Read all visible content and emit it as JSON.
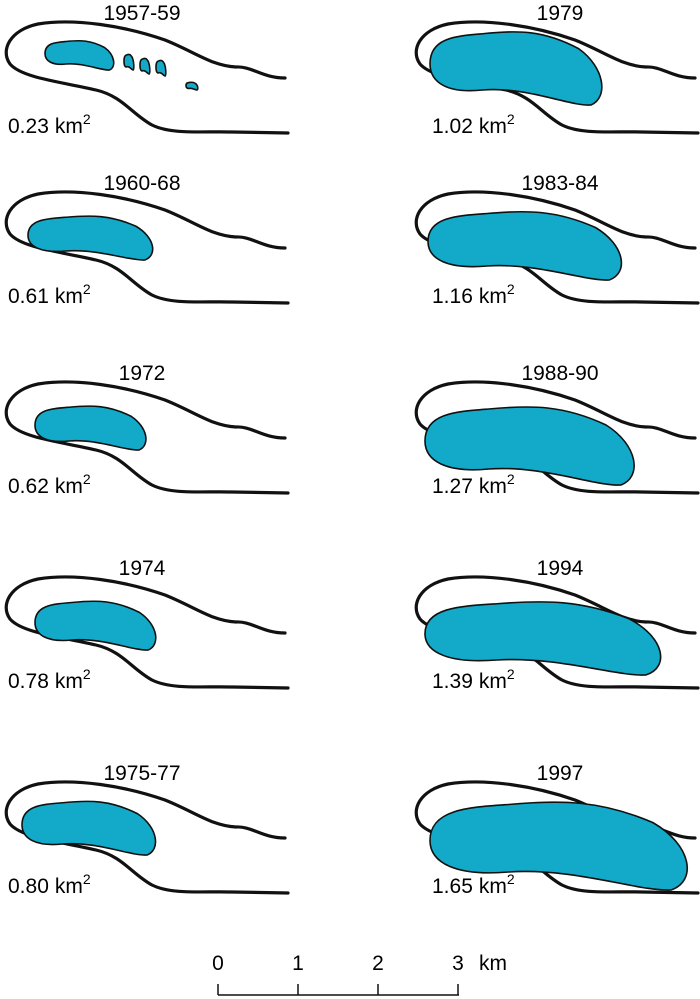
{
  "panels": [
    {
      "period": "1957-59",
      "area": "0.23",
      "unit": "km",
      "exponent": "2"
    },
    {
      "period": "1979",
      "area": "1.02",
      "unit": "km",
      "exponent": "2"
    },
    {
      "period": "1960-68",
      "area": "0.61",
      "unit": "km",
      "exponent": "2"
    },
    {
      "period": "1983-84",
      "area": "1.16",
      "unit": "km",
      "exponent": "2"
    },
    {
      "period": "1972",
      "area": "0.62",
      "unit": "km",
      "exponent": "2"
    },
    {
      "period": "1988-90",
      "area": "1.27",
      "unit": "km",
      "exponent": "2"
    },
    {
      "period": "1974",
      "area": "0.78",
      "unit": "km",
      "exponent": "2"
    },
    {
      "period": "1994",
      "area": "1.39",
      "unit": "km",
      "exponent": "2"
    },
    {
      "period": "1975-77",
      "area": "0.80",
      "unit": "km",
      "exponent": "2"
    },
    {
      "period": "1997",
      "area": "1.65",
      "unit": "km",
      "exponent": "2"
    }
  ],
  "scale_bar": {
    "ticks": [
      "0",
      "1",
      "2",
      "3"
    ],
    "unit": "km"
  }
}
